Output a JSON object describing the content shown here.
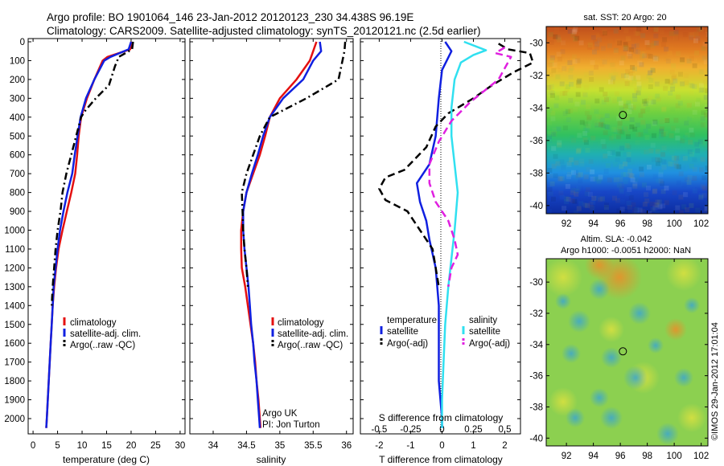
{
  "header": {
    "title_line1": "Argo profile: BO 1901064_146 23-Jan-2012 20120123_230 34.438S 96.19E",
    "title_line2": "Climatology: CARS2009. Satellite-adjusted climatology: synTS_20120121.nc (2.5d earlier)"
  },
  "colors": {
    "climatology": "#e41010",
    "satellite": "#1020e0",
    "argo": "#000000",
    "sal_satellite": "#30e0f0",
    "sal_argo": "#e020e0"
  },
  "chart_data": [
    {
      "type": "line",
      "panel": "temperature",
      "xlabel": "temperature (deg C)",
      "ylabel": "",
      "xlim": [
        -1,
        31
      ],
      "ylim": [
        2050,
        0
      ],
      "xticks": [
        0,
        5,
        10,
        15,
        20,
        25,
        30
      ],
      "yticks": [
        0,
        100,
        200,
        300,
        400,
        500,
        600,
        700,
        800,
        900,
        1000,
        1100,
        1200,
        1300,
        1400,
        1500,
        1600,
        1700,
        1800,
        1900,
        2000
      ],
      "legend": [
        "climatology",
        "satellite-adj. clim.",
        "Argo(..raw -QC)"
      ],
      "series": [
        {
          "name": "climatology",
          "style": "solid",
          "color": "#e41010",
          "points": [
            [
              20.2,
              0
            ],
            [
              19.8,
              40
            ],
            [
              15.2,
              80
            ],
            [
              14.2,
              100
            ],
            [
              12.5,
              200
            ],
            [
              11.0,
              300
            ],
            [
              9.8,
              400
            ],
            [
              9.3,
              500
            ],
            [
              9.0,
              600
            ],
            [
              8.6,
              700
            ],
            [
              7.8,
              800
            ],
            [
              6.9,
              900
            ],
            [
              6.0,
              1000
            ],
            [
              5.2,
              1100
            ],
            [
              4.7,
              1200
            ],
            [
              4.3,
              1300
            ],
            [
              4.0,
              1400
            ],
            [
              3.8,
              1500
            ],
            [
              3.6,
              1600
            ],
            [
              3.4,
              1700
            ],
            [
              3.2,
              1800
            ],
            [
              3.0,
              1900
            ],
            [
              2.8,
              2000
            ],
            [
              2.7,
              2050
            ]
          ]
        },
        {
          "name": "satellite-adj. clim.",
          "style": "solid",
          "color": "#1020e0",
          "points": [
            [
              20.0,
              0
            ],
            [
              19.5,
              40
            ],
            [
              15.8,
              80
            ],
            [
              14.5,
              100
            ],
            [
              12.5,
              200
            ],
            [
              10.8,
              300
            ],
            [
              9.7,
              400
            ],
            [
              9.1,
              500
            ],
            [
              8.5,
              600
            ],
            [
              8.0,
              700
            ],
            [
              7.0,
              800
            ],
            [
              6.2,
              900
            ],
            [
              5.5,
              1000
            ],
            [
              5.0,
              1100
            ],
            [
              4.6,
              1200
            ],
            [
              4.2,
              1300
            ],
            [
              4.0,
              1400
            ],
            [
              3.8,
              1500
            ],
            [
              3.6,
              1600
            ],
            [
              3.4,
              1700
            ],
            [
              3.2,
              1800
            ],
            [
              3.0,
              1900
            ],
            [
              2.8,
              2000
            ],
            [
              2.7,
              2050
            ]
          ]
        },
        {
          "name": "Argo(..raw -QC)",
          "style": "dashdot",
          "color": "#000000",
          "points": [
            [
              20.4,
              0
            ],
            [
              20.2,
              40
            ],
            [
              17.5,
              80
            ],
            [
              16.7,
              130
            ],
            [
              15.5,
              230
            ],
            [
              12.8,
              300
            ],
            [
              10.5,
              370
            ],
            [
              9.8,
              400
            ],
            [
              8.8,
              500
            ],
            [
              7.8,
              600
            ],
            [
              6.8,
              700
            ],
            [
              6.0,
              800
            ],
            [
              5.6,
              900
            ],
            [
              5.0,
              1000
            ],
            [
              4.6,
              1100
            ],
            [
              4.3,
              1200
            ],
            [
              4.0,
              1300
            ],
            [
              3.8,
              1400
            ]
          ]
        }
      ],
      "annotations": []
    },
    {
      "type": "line",
      "panel": "salinity",
      "xlabel": "salinity",
      "ylabel": "",
      "xlim": [
        33.65,
        36.1
      ],
      "ylim": [
        2050,
        0
      ],
      "xticks": [
        34,
        34.5,
        35,
        35.5,
        36
      ],
      "xtick_labels": [
        "34",
        "34.5",
        "35",
        "35.5",
        "36"
      ],
      "legend": [
        "climatology",
        "satellite-adj. clim.",
        "Argo(..raw -QC)"
      ],
      "series": [
        {
          "name": "climatology",
          "style": "solid",
          "color": "#e41010",
          "points": [
            [
              35.55,
              0
            ],
            [
              35.5,
              50
            ],
            [
              35.45,
              100
            ],
            [
              35.25,
              200
            ],
            [
              35.0,
              300
            ],
            [
              34.85,
              400
            ],
            [
              34.78,
              500
            ],
            [
              34.7,
              600
            ],
            [
              34.6,
              700
            ],
            [
              34.5,
              800
            ],
            [
              34.45,
              900
            ],
            [
              34.42,
              1000
            ],
            [
              34.42,
              1100
            ],
            [
              34.43,
              1200
            ],
            [
              34.48,
              1300
            ],
            [
              34.52,
              1400
            ],
            [
              34.56,
              1500
            ],
            [
              34.6,
              1600
            ],
            [
              34.63,
              1700
            ],
            [
              34.65,
              1800
            ],
            [
              34.68,
              1900
            ],
            [
              34.7,
              2000
            ],
            [
              34.71,
              2050
            ]
          ]
        },
        {
          "name": "satellite-adj. clim.",
          "style": "solid",
          "color": "#1020e0",
          "points": [
            [
              35.6,
              0
            ],
            [
              35.62,
              50
            ],
            [
              35.5,
              100
            ],
            [
              35.35,
              200
            ],
            [
              35.05,
              300
            ],
            [
              34.85,
              400
            ],
            [
              34.75,
              500
            ],
            [
              34.67,
              600
            ],
            [
              34.58,
              700
            ],
            [
              34.5,
              800
            ],
            [
              34.45,
              900
            ],
            [
              34.45,
              1000
            ],
            [
              34.47,
              1100
            ],
            [
              34.5,
              1200
            ],
            [
              34.53,
              1300
            ],
            [
              34.55,
              1400
            ],
            [
              34.57,
              1500
            ],
            [
              34.6,
              1600
            ],
            [
              34.62,
              1700
            ],
            [
              34.65,
              1800
            ],
            [
              34.67,
              1900
            ],
            [
              34.69,
              2000
            ],
            [
              34.7,
              2050
            ]
          ]
        },
        {
          "name": "Argo(..raw -QC)",
          "style": "dashdot",
          "color": "#000000",
          "points": [
            [
              35.98,
              0
            ],
            [
              35.97,
              50
            ],
            [
              35.88,
              200
            ],
            [
              35.4,
              300
            ],
            [
              34.85,
              400
            ],
            [
              34.7,
              500
            ],
            [
              34.6,
              600
            ],
            [
              34.5,
              700
            ],
            [
              34.43,
              800
            ],
            [
              34.44,
              900
            ],
            [
              34.45,
              1000
            ],
            [
              34.47,
              1100
            ],
            [
              34.5,
              1200
            ],
            [
              34.52,
              1300
            ]
          ]
        }
      ],
      "annotations": [
        "Argo UK",
        "PI: Jon Turton"
      ]
    },
    {
      "type": "line",
      "panel": "differences",
      "xlabel": "T difference from climatology",
      "top_xlabel": "S difference from climatology",
      "xlim": [
        -2.6,
        2.5
      ],
      "ylim": [
        2050,
        0
      ],
      "xticks": [
        -2,
        -1,
        0,
        1,
        2
      ],
      "top_xticks": [
        -0.5,
        -0.25,
        0,
        0.25,
        0.5
      ],
      "top_xtick_labels": [
        "-0.5",
        "-0.25",
        "0",
        "0.25",
        "0.5"
      ],
      "legend_titles": [
        "temperature",
        "salinity"
      ],
      "legend": [
        "satellite",
        "Argo(-adj)",
        "satellite",
        "Argo(-adj)"
      ],
      "series": [
        {
          "name": "temperature satellite",
          "style": "solid",
          "color": "#1020e0",
          "points": [
            [
              0.1,
              0
            ],
            [
              0.3,
              50
            ],
            [
              0,
              150
            ],
            [
              -0.1,
              300
            ],
            [
              -0.2,
              500
            ],
            [
              -0.4,
              650
            ],
            [
              -0.8,
              750
            ],
            [
              -0.7,
              850
            ],
            [
              -0.5,
              950
            ],
            [
              -0.4,
              1050
            ],
            [
              -0.2,
              1200
            ],
            [
              -0.1,
              1400
            ],
            [
              -0.1,
              1600
            ],
            [
              -0.1,
              1800
            ],
            [
              0,
              2000
            ],
            [
              0,
              2050
            ]
          ]
        },
        {
          "name": "temperature Argo(-adj)",
          "style": "dashed",
          "color": "#000000",
          "points": [
            [
              1.8,
              10
            ],
            [
              2.1,
              40
            ],
            [
              2.8,
              60
            ],
            [
              2.9,
              110
            ],
            [
              2.3,
              160
            ],
            [
              1.6,
              230
            ],
            [
              1.0,
              300
            ],
            [
              0.2,
              380
            ],
            [
              -0.2,
              450
            ],
            [
              -0.5,
              560
            ],
            [
              -1.2,
              680
            ],
            [
              -1.8,
              720
            ],
            [
              -2.0,
              780
            ],
            [
              -1.8,
              840
            ],
            [
              -1.1,
              900
            ],
            [
              -0.7,
              1000
            ],
            [
              -0.3,
              1100
            ],
            [
              -0.2,
              1200
            ],
            [
              -0.1,
              1300
            ]
          ]
        },
        {
          "name": "salinity satellite",
          "style": "solid",
          "color": "#30e0f0",
          "points": [
            [
              0.7,
              0
            ],
            [
              1.4,
              45
            ],
            [
              1.0,
              70
            ],
            [
              0.6,
              110
            ],
            [
              0.4,
              200
            ],
            [
              0.3,
              350
            ],
            [
              0.3,
              500
            ],
            [
              0.4,
              650
            ],
            [
              0.5,
              800
            ],
            [
              0.4,
              1000
            ],
            [
              0.3,
              1150
            ],
            [
              0.2,
              1300
            ],
            [
              0.1,
              1500
            ],
            [
              0.05,
              1700
            ],
            [
              0,
              1900
            ],
            [
              0,
              2050
            ]
          ]
        },
        {
          "name": "salinity Argo(-adj)",
          "style": "dashed",
          "color": "#e020e0",
          "points": [
            [
              2.0,
              30
            ],
            [
              1.7,
              60
            ],
            [
              2.2,
              80
            ],
            [
              1.8,
              200
            ],
            [
              0.9,
              320
            ],
            [
              0.3,
              420
            ],
            [
              -0.1,
              530
            ],
            [
              -0.4,
              650
            ],
            [
              -0.4,
              750
            ],
            [
              -0.2,
              850
            ],
            [
              0.2,
              950
            ],
            [
              0.4,
              1050
            ],
            [
              0.5,
              1130
            ],
            [
              0.3,
              1200
            ],
            [
              0.2,
              1300
            ]
          ]
        }
      ]
    },
    {
      "type": "heatmap",
      "panel": "sst-map",
      "title": "sat. SST: 20 Argo: 20",
      "xticks": [
        92,
        94,
        96,
        98,
        100,
        102
      ],
      "yticks": [
        -30,
        -32,
        -34,
        -36,
        -38,
        -40
      ],
      "xlim": [
        90.5,
        102.5
      ],
      "ylim": [
        -40.5,
        -29
      ],
      "marker": {
        "lon": 96.19,
        "lat": -34.438
      }
    },
    {
      "type": "heatmap",
      "panel": "sla-map",
      "title_line1": "Altim. SLA: -0.042",
      "title_line2": "Argo h1000: -0.0051 h2000: NaN",
      "xticks": [
        92,
        94,
        96,
        98,
        100,
        102
      ],
      "yticks": [
        -30,
        -32,
        -34,
        -36,
        -38,
        -40
      ],
      "xlim": [
        90.5,
        102.5
      ],
      "ylim": [
        -40.5,
        -28.5
      ],
      "marker": {
        "lon": 96.19,
        "lat": -34.438
      }
    }
  ],
  "credit": "©IMOS 29-Jan-2012 17:01:04"
}
